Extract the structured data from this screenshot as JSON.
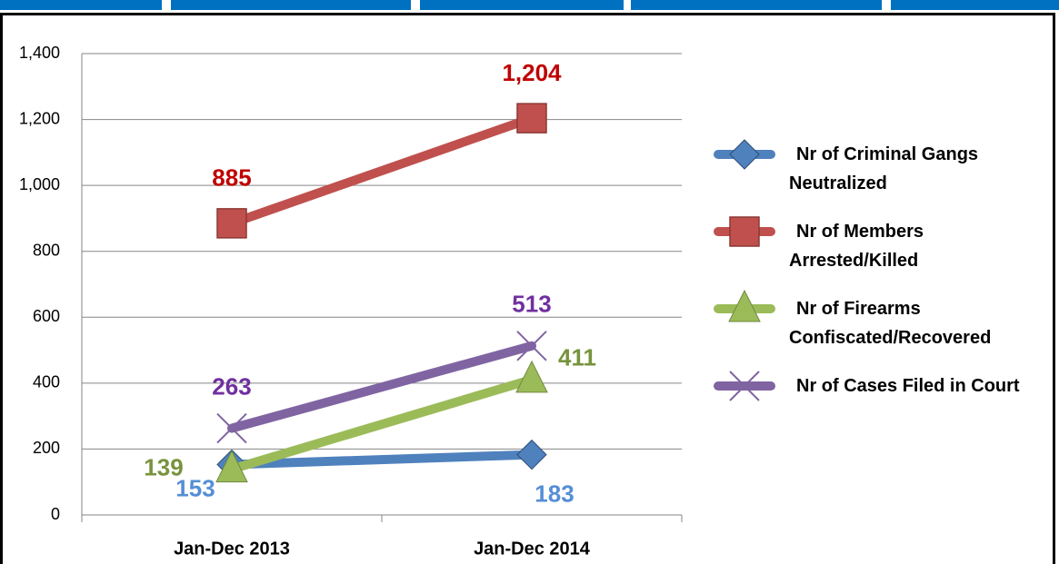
{
  "chart_data": {
    "type": "line",
    "categories": [
      "Jan-Dec 2013",
      "Jan-Dec 2014"
    ],
    "series": [
      {
        "name": "Nr of Criminal Gangs Neutralized",
        "color": "#4f81bd",
        "label_color": "#558ed5",
        "marker": "diamond",
        "values": [
          153,
          183
        ]
      },
      {
        "name": "Nr of Members Arrested/Killed",
        "color": "#c0504d",
        "label_color": "#c00000",
        "marker": "square",
        "values": [
          885,
          1204
        ],
        "value_labels": [
          "885",
          "1,204"
        ]
      },
      {
        "name": "Nr of Firearms Confiscated/Recovered",
        "color": "#9bbb59",
        "label_color": "#77933c",
        "marker": "triangle",
        "values": [
          139,
          411
        ]
      },
      {
        "name": "Nr of Cases Filed in Court",
        "color": "#8064a2",
        "label_color": "#7030a0",
        "marker": "x",
        "values": [
          263,
          513
        ]
      }
    ],
    "ylim": [
      0,
      1400
    ],
    "yticks": [
      0,
      200,
      400,
      600,
      800,
      {
        "value": 1000,
        "label": "1,000"
      },
      {
        "value": 1200,
        "label": "1,200"
      },
      {
        "value": 1400,
        "label": "1,400"
      }
    ],
    "grid": true,
    "legend": "right"
  }
}
